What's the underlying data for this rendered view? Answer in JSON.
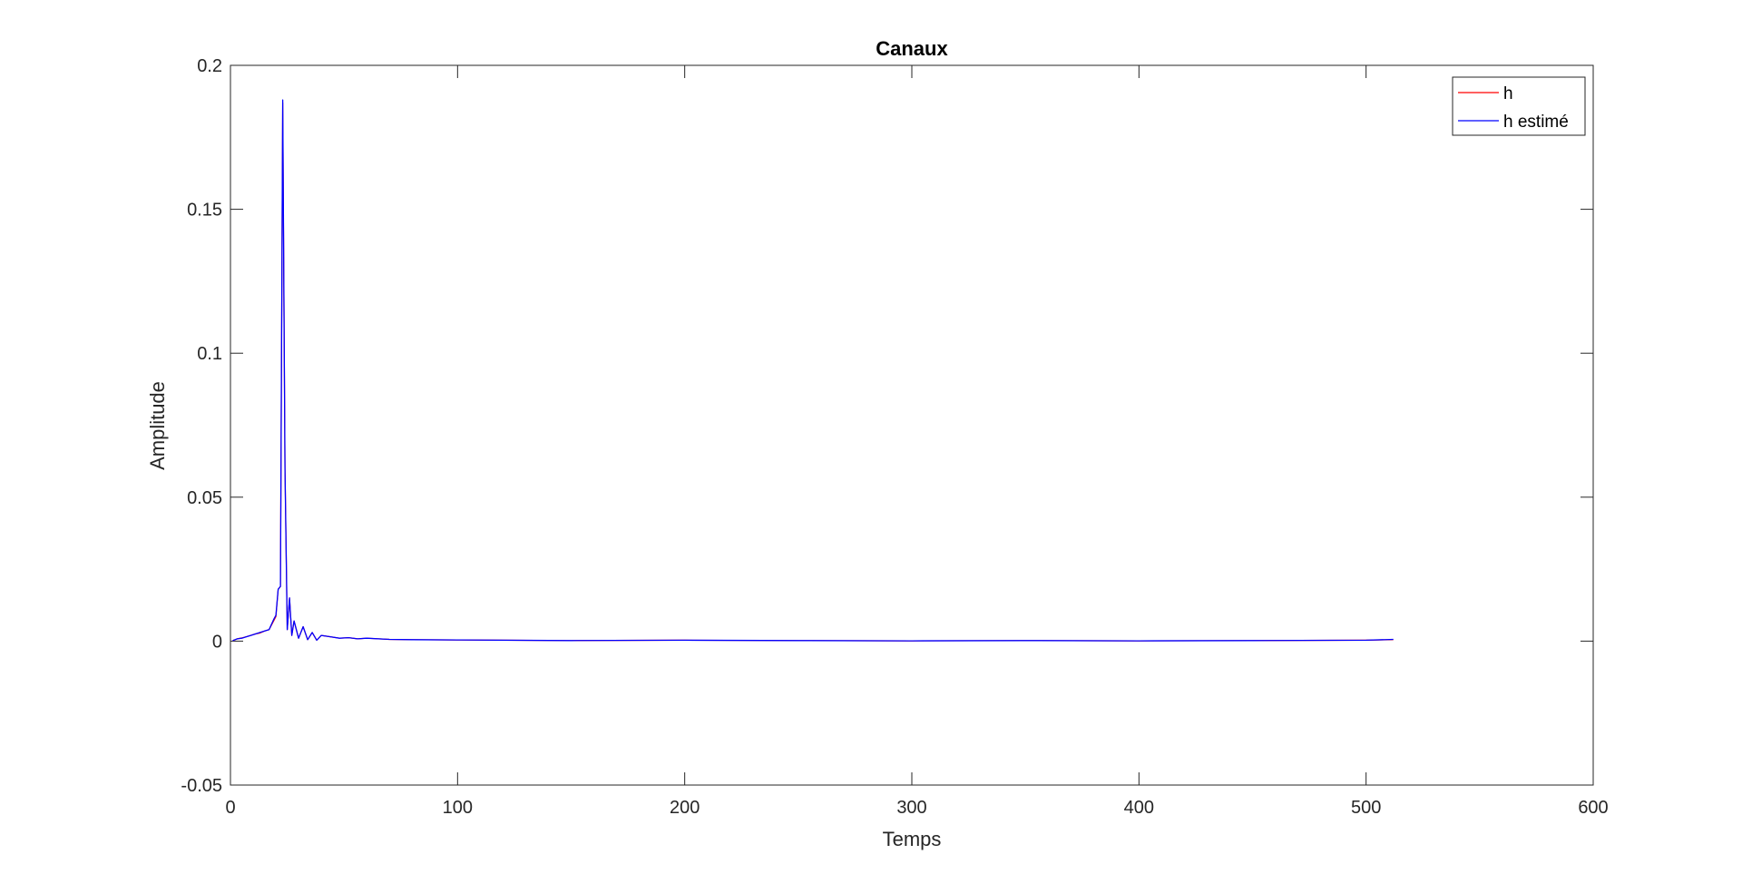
{
  "chart_data": {
    "type": "line",
    "title": "Canaux",
    "xlabel": "Temps",
    "ylabel": "Amplitude",
    "xlim": [
      0,
      600
    ],
    "ylim": [
      -0.05,
      0.2
    ],
    "xticks": [
      0,
      100,
      200,
      300,
      400,
      500,
      600
    ],
    "xtick_labels": [
      "0",
      "100",
      "200",
      "300",
      "400",
      "500",
      "600"
    ],
    "yticks": [
      -0.05,
      0,
      0.05,
      0.1,
      0.15,
      0.2
    ],
    "ytick_labels": [
      "-0.05",
      "0",
      "0.05",
      "0.1",
      "0.15",
      "0.2"
    ],
    "grid": false,
    "legend_position": "top-right",
    "series": [
      {
        "name": "h",
        "color": "#ff0000",
        "x": [
          1,
          3,
          5,
          7,
          9,
          11,
          13,
          15,
          17,
          19,
          20,
          21,
          22,
          23,
          24,
          25,
          26,
          27,
          28,
          30,
          32,
          34,
          36,
          38,
          40,
          44,
          48,
          52,
          56,
          60,
          70,
          80,
          100,
          150,
          200,
          250,
          300,
          350,
          400,
          450,
          500,
          512
        ],
        "y": [
          0.0002,
          0.0008,
          0.0011,
          0.0015,
          0.002,
          0.0025,
          0.0028,
          0.0035,
          0.004,
          0.007,
          0.0085,
          0.018,
          0.019,
          0.187,
          0.06,
          0.004,
          0.015,
          0.002,
          0.007,
          0.001,
          0.005,
          0.0005,
          0.003,
          0.0003,
          0.002,
          0.0015,
          0.001,
          0.0012,
          0.0008,
          0.001,
          0.0006,
          0.0005,
          0.0004,
          0.0002,
          0.0003,
          0.0002,
          0.0001,
          0.0002,
          0.0001,
          0.0002,
          0.0003,
          0.0005
        ]
      },
      {
        "name": "h estimé",
        "color": "#0000ff",
        "x": [
          1,
          3,
          5,
          7,
          9,
          11,
          13,
          15,
          17,
          19,
          20,
          21,
          22,
          23,
          24,
          25,
          26,
          27,
          28,
          30,
          32,
          34,
          36,
          38,
          40,
          44,
          48,
          52,
          56,
          60,
          70,
          80,
          100,
          150,
          200,
          250,
          300,
          350,
          400,
          450,
          500,
          512
        ],
        "y": [
          0.0002,
          0.0008,
          0.001,
          0.0015,
          0.002,
          0.0025,
          0.003,
          0.0035,
          0.004,
          0.0075,
          0.009,
          0.018,
          0.019,
          0.188,
          0.06,
          0.004,
          0.015,
          0.002,
          0.007,
          0.001,
          0.005,
          0.0005,
          0.003,
          0.0003,
          0.002,
          0.0015,
          0.001,
          0.0012,
          0.0008,
          0.001,
          0.0006,
          0.0005,
          0.0004,
          0.0002,
          0.0003,
          0.0002,
          0.0001,
          0.0002,
          0.0001,
          0.0002,
          0.0003,
          0.0006
        ]
      }
    ]
  }
}
